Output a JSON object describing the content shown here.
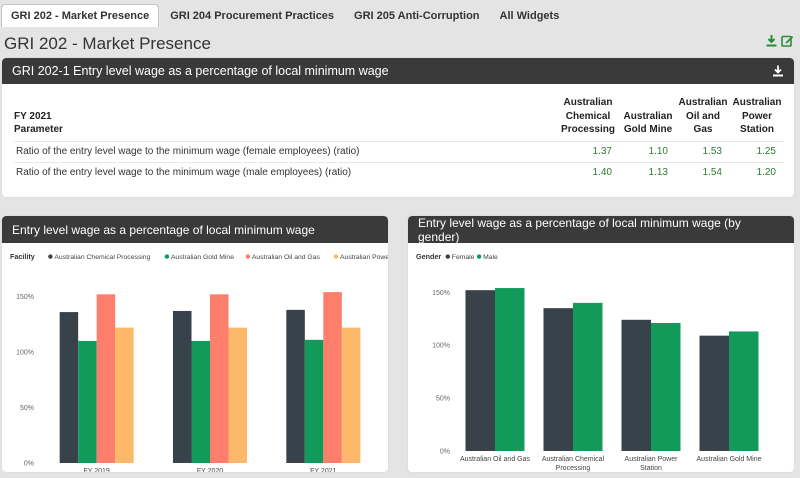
{
  "tabs": [
    {
      "label": "GRI 202 - Market Presence",
      "active": true
    },
    {
      "label": "GRI 204 Procurement Practices",
      "active": false
    },
    {
      "label": "GRI 205 Anti-Corruption",
      "active": false
    },
    {
      "label": "All Widgets",
      "active": false
    }
  ],
  "page": {
    "title": "GRI 202 - Market Presence"
  },
  "header_icons": [
    "download-icon",
    "edit-icon"
  ],
  "colors": {
    "accent": "#2e8b3a",
    "dark": "#3a3a3a",
    "value_green": "#2e7d32"
  },
  "table_panel": {
    "title": "GRI 202-1 Entry level wage as a percentage of local minimum wage",
    "fy": "FY 2021",
    "param_header": "Parameter",
    "columns": [
      [
        "Australian",
        "Chemical",
        "Processing"
      ],
      [
        "Australian",
        "Gold Mine"
      ],
      [
        "Australian",
        "Oil and",
        "Gas"
      ],
      [
        "Australian",
        "Power",
        "Station"
      ]
    ],
    "rows": [
      {
        "parameter": "Ratio of the entry level wage to the minimum wage (female employees) (ratio)",
        "values": [
          "1.37",
          "1.10",
          "1.53",
          "1.25"
        ]
      },
      {
        "parameter": "Ratio of the entry level wage to the minimum wage (male employees) (ratio)",
        "values": [
          "1.40",
          "1.13",
          "1.54",
          "1.20"
        ]
      }
    ]
  },
  "chart_data": [
    {
      "type": "bar",
      "title": "Entry level wage as a percentage of local minimum wage",
      "legend_title": "Facility",
      "legend_position": "top-left",
      "categories": [
        "FY 2019",
        "FY 2020",
        "FY 2021"
      ],
      "series": [
        {
          "name": "Australian Chemical Processing",
          "color": "#37424a",
          "values": [
            136,
            137,
            138
          ]
        },
        {
          "name": "Australian Gold Mine",
          "color": "#119a5a",
          "values": [
            110,
            110,
            111
          ]
        },
        {
          "name": "Australian Oil and Gas",
          "color": "#fd7e6a",
          "values": [
            152,
            152,
            154
          ]
        },
        {
          "name": "Australian Power Station",
          "color": "#fdb86a",
          "values": [
            122,
            122,
            122
          ]
        }
      ],
      "ylim": [
        0,
        155
      ],
      "yticks": [
        "0%",
        "50%",
        "100%",
        "150%"
      ],
      "grid": false
    },
    {
      "type": "bar",
      "title": "Entry level wage as a percentage of local minimum wage (by gender)",
      "legend_title": "Gender",
      "legend_position": "top-left",
      "categories": [
        [
          "Australian Oil and Gas"
        ],
        [
          "Australian Chemical",
          "Processing"
        ],
        [
          "Australian Power",
          "Station"
        ],
        [
          "Australian Gold Mine"
        ]
      ],
      "series": [
        {
          "name": "Female",
          "color": "#37424a",
          "values": [
            152,
            135,
            124,
            109
          ]
        },
        {
          "name": "Male",
          "color": "#119a5a",
          "values": [
            154,
            140,
            121,
            113
          ]
        }
      ],
      "ylim": [
        0,
        155
      ],
      "yticks": [
        "0%",
        "50%",
        "100%",
        "150%"
      ],
      "grid": false
    }
  ]
}
